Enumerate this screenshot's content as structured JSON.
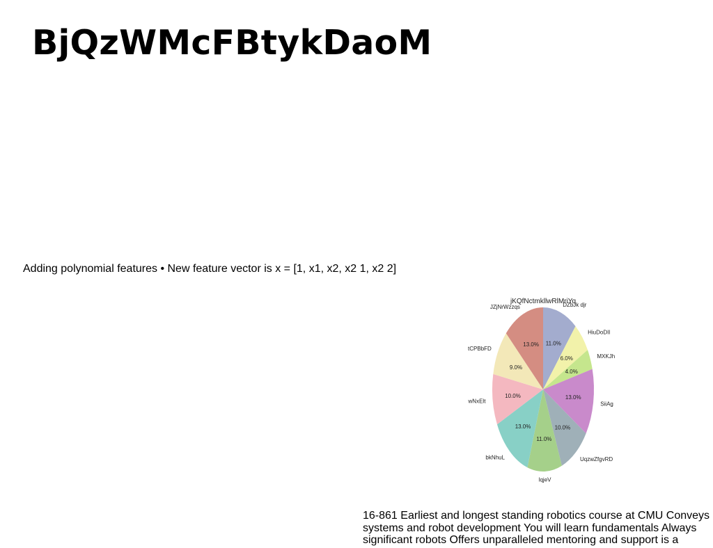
{
  "slide": {
    "title": "BjQzWMcFBtykDaoM",
    "bullet_text": "Adding polynomial features • New feature vector is x = [1, x1, x2, x2 1, x2 2]",
    "paragraph": "16-861 Earliest and longest standing robotics course at CMU Conveys systems and robot development You will learn fundamentals Always significant robots Offers unparalleled mentoring and support is a"
  },
  "chart_data": {
    "type": "pie",
    "title": "jKQfNctmkllwRlMriYq",
    "labels": [
      "DZbJk djr",
      "HiuDoDIl",
      "MXKJh",
      "SiiAg",
      "UqzwZfgvRD",
      "lqjeV",
      "bkNhuL",
      "wNxElt",
      "tCPBbFD",
      "JZjNrWzzqs"
    ],
    "values": [
      11.0,
      6.0,
      4.0,
      13.0,
      10.0,
      11.0,
      13.0,
      10.0,
      9.0,
      13.0
    ],
    "value_labels": [
      "11.0%",
      "6.0%",
      "4.0%",
      "13.0%",
      "10.0%",
      "11.0%",
      "13.0%",
      "10.0%",
      "9.0%",
      "13.0%"
    ],
    "colors": [
      "#a3acce",
      "#f2f2aa",
      "#c5e68d",
      "#c98acb",
      "#9fb0b8",
      "#a5d08a",
      "#88d0c6",
      "#f4b8c0",
      "#f3e8b8",
      "#d48d82"
    ],
    "start_angle_deg": 90,
    "direction": "clockwise",
    "legend": "none"
  }
}
